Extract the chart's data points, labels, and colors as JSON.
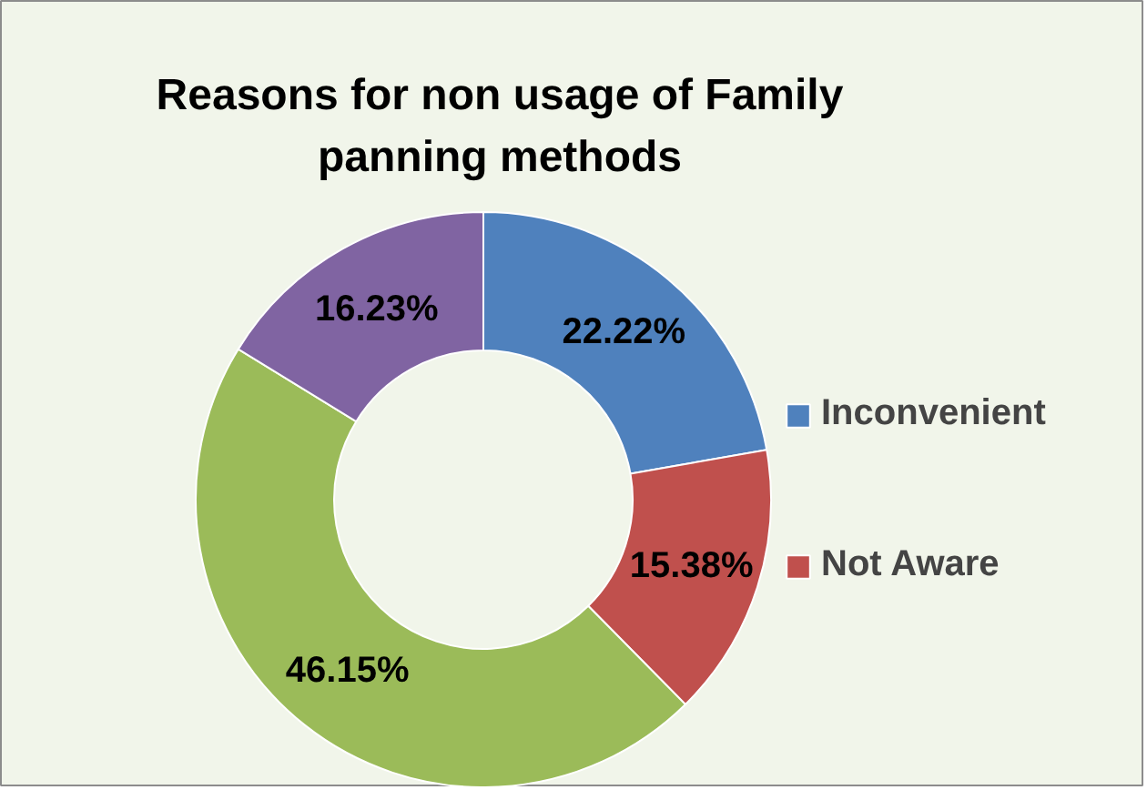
{
  "chart_data": {
    "type": "donut",
    "title": "Reasons for non usage of Family panning methods",
    "categories": [
      "Inconvenient",
      "Not Aware",
      null,
      null
    ],
    "values": [
      22.22,
      15.38,
      46.15,
      16.23
    ],
    "value_labels": [
      "22.22%",
      "15.38%",
      "46.15%",
      "16.23%"
    ],
    "colors": [
      "#4f81bd",
      "#c0504d",
      "#9bbb59",
      "#8064a2"
    ],
    "legend": "right"
  }
}
